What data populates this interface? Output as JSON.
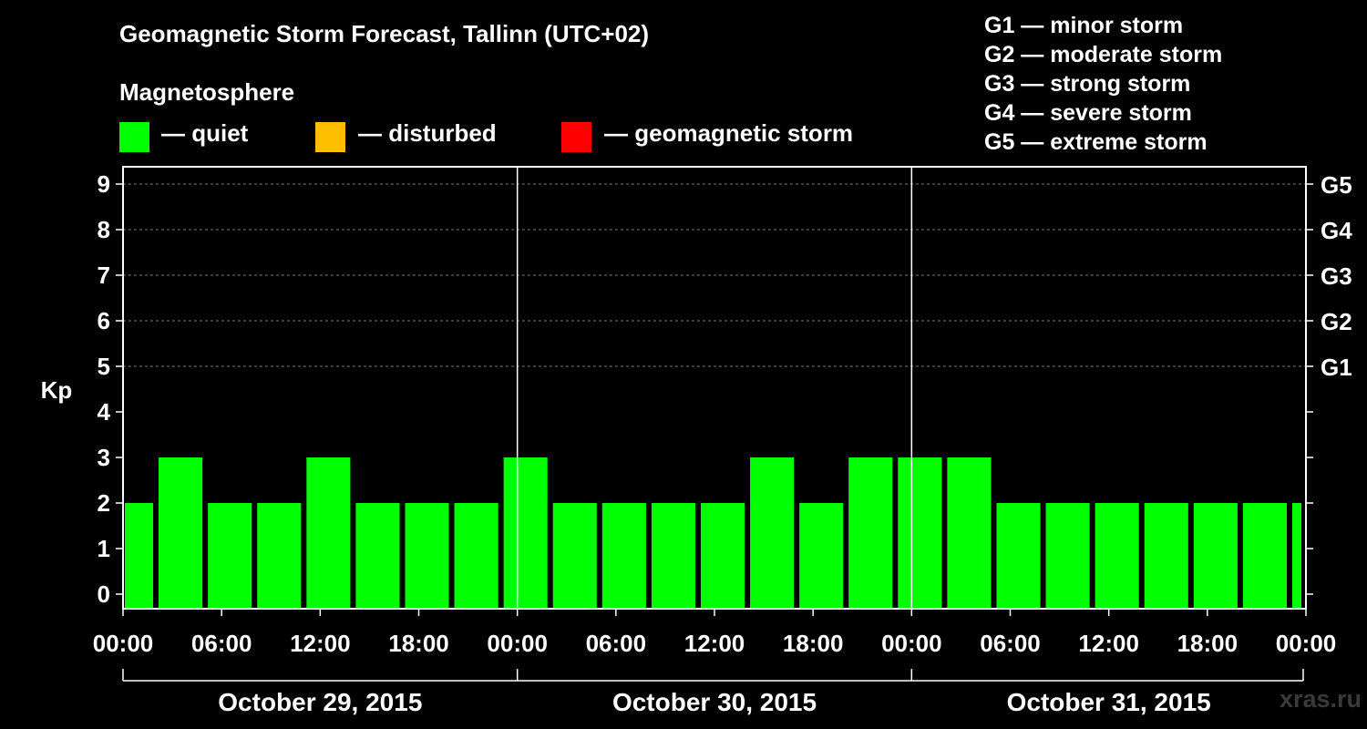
{
  "title": "Geomagnetic Storm Forecast, Tallinn (UTC+02)",
  "magnetosphere_label": "Magnetosphere",
  "legend": [
    {
      "label": "— quiet",
      "color": "#00ff00"
    },
    {
      "label": "— disturbed",
      "color": "#ffbf00"
    },
    {
      "label": "— geomagnetic storm",
      "color": "#ff0000"
    }
  ],
  "g_scale": [
    {
      "label": "G1 — minor storm"
    },
    {
      "label": "G2 — moderate storm"
    },
    {
      "label": "G3 — strong storm"
    },
    {
      "label": "G4 — severe storm"
    },
    {
      "label": "G5 — extreme storm"
    }
  ],
  "watermark": "xras.ru",
  "chart_data": {
    "type": "bar",
    "title": "Geomagnetic Storm Forecast, Tallinn (UTC+02)",
    "ylabel": "Kp",
    "xlabel": "",
    "ylim": [
      0,
      9
    ],
    "y_ticks": [
      "0",
      "1",
      "2",
      "3",
      "4",
      "5",
      "6",
      "7",
      "8",
      "9"
    ],
    "right_axis_labels": [
      {
        "kp": 5,
        "label": "G1"
      },
      {
        "kp": 6,
        "label": "G2"
      },
      {
        "kp": 7,
        "label": "G3"
      },
      {
        "kp": 8,
        "label": "G4"
      },
      {
        "kp": 9,
        "label": "G5"
      }
    ],
    "x_range_hours": [
      -1,
      71
    ],
    "x_ticks": [
      {
        "hour": -1,
        "label": "00:00"
      },
      {
        "hour": 5,
        "label": "06:00"
      },
      {
        "hour": 11,
        "label": "12:00"
      },
      {
        "hour": 17,
        "label": "18:00"
      },
      {
        "hour": 23,
        "label": "00:00"
      },
      {
        "hour": 29,
        "label": "06:00"
      },
      {
        "hour": 35,
        "label": "12:00"
      },
      {
        "hour": 41,
        "label": "18:00"
      },
      {
        "hour": 47,
        "label": "00:00"
      },
      {
        "hour": 53,
        "label": "06:00"
      },
      {
        "hour": 59,
        "label": "12:00"
      },
      {
        "hour": 65,
        "label": "18:00"
      },
      {
        "hour": 71,
        "label": "00:00"
      }
    ],
    "day_separators_hours": [
      23,
      47
    ],
    "days": [
      {
        "label": "October 29, 2015",
        "start": -1,
        "end": 23
      },
      {
        "label": "October 30, 2015",
        "start": 23,
        "end": 47
      },
      {
        "label": "October 31, 2015",
        "start": 47,
        "end": 71
      }
    ],
    "series": [
      {
        "name": "Kp forecast",
        "bars": [
          {
            "start": -1,
            "end": 1,
            "kp": 2
          },
          {
            "start": 1,
            "end": 4,
            "kp": 3
          },
          {
            "start": 4,
            "end": 7,
            "kp": 2
          },
          {
            "start": 7,
            "end": 10,
            "kp": 2
          },
          {
            "start": 10,
            "end": 13,
            "kp": 3
          },
          {
            "start": 13,
            "end": 16,
            "kp": 2
          },
          {
            "start": 16,
            "end": 19,
            "kp": 2
          },
          {
            "start": 19,
            "end": 22,
            "kp": 2
          },
          {
            "start": 22,
            "end": 25,
            "kp": 3
          },
          {
            "start": 25,
            "end": 28,
            "kp": 2
          },
          {
            "start": 28,
            "end": 31,
            "kp": 2
          },
          {
            "start": 31,
            "end": 34,
            "kp": 2
          },
          {
            "start": 34,
            "end": 37,
            "kp": 2
          },
          {
            "start": 37,
            "end": 40,
            "kp": 3
          },
          {
            "start": 40,
            "end": 43,
            "kp": 2
          },
          {
            "start": 43,
            "end": 46,
            "kp": 3
          },
          {
            "start": 46,
            "end": 49,
            "kp": 3
          },
          {
            "start": 49,
            "end": 52,
            "kp": 3
          },
          {
            "start": 52,
            "end": 55,
            "kp": 2
          },
          {
            "start": 55,
            "end": 58,
            "kp": 2
          },
          {
            "start": 58,
            "end": 61,
            "kp": 2
          },
          {
            "start": 61,
            "end": 64,
            "kp": 2
          },
          {
            "start": 64,
            "end": 67,
            "kp": 2
          },
          {
            "start": 67,
            "end": 70,
            "kp": 2
          },
          {
            "start": 70,
            "end": 71,
            "kp": 2
          }
        ]
      }
    ]
  }
}
